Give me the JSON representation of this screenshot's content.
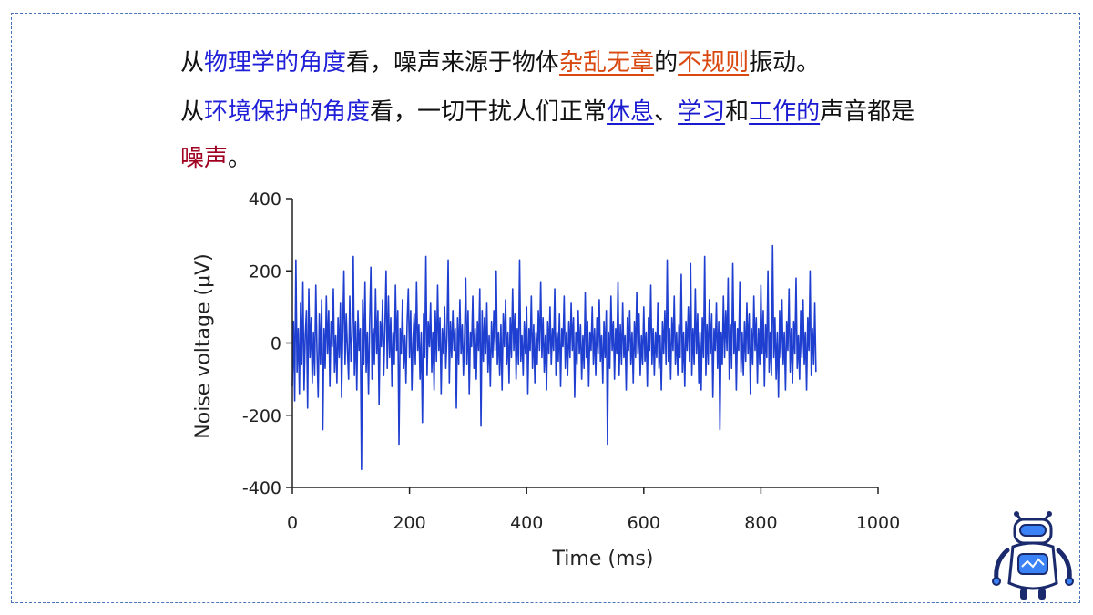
{
  "slide": {
    "line1": {
      "p1": "从",
      "p2": "物理学的角度",
      "p3": "看，噪声来源于物体",
      "p4": "杂乱无章",
      "p5": "的",
      "p6": "不规则",
      "p7": "振动。"
    },
    "line2": {
      "p1": "从",
      "p2": "环境保护的角度",
      "p3": "看，一切干扰人们正常",
      "p4": "休息",
      "p5": "、",
      "p6": "学习",
      "p7": "和",
      "p8": "工作的",
      "p9": "声音都是",
      "p10": "噪声",
      "p11": "。"
    }
  },
  "colors": {
    "frame": "#4a74b8",
    "blue_text": "#2020d8",
    "orange_link": "#d9480f",
    "dark_red": "#a00020",
    "signal": "#1f3fd0"
  },
  "robot": {
    "icon": "robot-icon"
  },
  "chart_data": {
    "type": "line",
    "xlabel": "Time (ms)",
    "ylabel": "Noise voltage (μV)",
    "xlim": [
      0,
      1000
    ],
    "ylim": [
      -400,
      400
    ],
    "xticks": [
      0,
      200,
      400,
      600,
      800,
      1000
    ],
    "xtick_labels": [
      "0",
      "200",
      "400",
      "600",
      "800",
      "1000"
    ],
    "yticks": [
      400,
      200,
      0,
      -200,
      -400
    ],
    "ytick_labels": [
      "400",
      "200",
      "0",
      "-200",
      "-400"
    ],
    "grid": false,
    "sample_interval_ms": 2,
    "series": [
      {
        "color": "#1f3fd0",
        "y": [
          -120,
          60,
          -160,
          230,
          -80,
          40,
          -140,
          110,
          -60,
          170,
          -130,
          20,
          90,
          -180,
          150,
          -40,
          70,
          -110,
          30,
          -90,
          160,
          -20,
          -150,
          80,
          -60,
          120,
          -240,
          40,
          -70,
          130,
          -30,
          90,
          -120,
          60,
          -10,
          150,
          -80,
          20,
          -110,
          70,
          -40,
          110,
          -150,
          30,
          200,
          -60,
          80,
          -20,
          -100,
          130,
          -50,
          20,
          240,
          -90,
          60,
          -130,
          90,
          -20,
          40,
          -350,
          120,
          -60,
          170,
          -80,
          30,
          -140,
          60,
          210,
          -100,
          40,
          -60,
          150,
          -30,
          90,
          -170,
          60,
          -10,
          120,
          -90,
          40,
          200,
          -70,
          130,
          -40,
          70,
          -120,
          30,
          -60,
          160,
          -20,
          90,
          -280,
          40,
          -30,
          120,
          -70,
          20,
          -110,
          60,
          150,
          -40,
          90,
          -130,
          10,
          80,
          -60,
          170,
          -20,
          50,
          -100,
          30,
          -220,
          80,
          -40,
          240,
          -90,
          60,
          -10,
          110,
          -80,
          30,
          -130,
          90,
          -50,
          160,
          -20,
          70,
          -140,
          40,
          -30,
          100,
          -70,
          20,
          230,
          -110,
          60,
          -40,
          90,
          -20,
          40,
          -180,
          70,
          -60,
          120,
          -30,
          50,
          -90,
          20,
          180,
          -60,
          90,
          -140,
          30,
          -10,
          130,
          -70,
          40,
          -100,
          60,
          -20,
          150,
          -230,
          90,
          -50,
          70,
          -30,
          110,
          -80,
          20,
          -120,
          60,
          -40,
          90,
          -20,
          200,
          -60,
          30,
          -90,
          50,
          -130,
          80,
          -10,
          120,
          -60,
          30,
          -110,
          70,
          -40,
          150,
          -20,
          80,
          -100,
          40,
          -60,
          230,
          -50,
          20,
          -90,
          60,
          -30,
          100,
          -140,
          40,
          -20,
          130,
          -70,
          50,
          -110,
          30,
          -60,
          90,
          -20,
          170,
          -40,
          70,
          -80,
          20,
          -130,
          60,
          -30,
          100,
          -60,
          40,
          -20,
          150,
          -90,
          30,
          -50,
          80,
          -120,
          40,
          -10,
          130,
          -70,
          30,
          -90,
          60,
          -40,
          110,
          -20,
          70,
          -150,
          30,
          -60,
          90,
          -30,
          50,
          -100,
          20,
          -70,
          140,
          -40,
          60,
          -120,
          30,
          -20,
          100,
          -60,
          40,
          -90,
          70,
          -30,
          120,
          -50,
          20,
          -110,
          60,
          -40,
          90,
          -280,
          30,
          -70,
          130,
          -20,
          60,
          -100,
          40,
          -30,
          170,
          -90,
          50,
          -60,
          110,
          -40,
          20,
          -130,
          70,
          -20,
          90,
          -60,
          30,
          -110,
          60,
          -40,
          140,
          -30,
          80,
          -90,
          20,
          -60,
          100,
          -50,
          30,
          -120,
          70,
          -20,
          160,
          -60,
          40,
          -90,
          30,
          -40,
          110,
          -70,
          20,
          -130,
          60,
          -30,
          90,
          -60,
          230,
          -50,
          40,
          -100,
          70,
          -20,
          130,
          -60,
          30,
          -90,
          50,
          -40,
          190,
          -80,
          30,
          -120,
          60,
          -20,
          100,
          -50,
          220,
          -90,
          40,
          -60,
          150,
          -30,
          80,
          -110,
          30,
          -130,
          70,
          -40,
          240,
          -90,
          50,
          -60,
          120,
          -30,
          80,
          -150,
          40,
          -20,
          110,
          -70,
          60,
          -240,
          30,
          -60,
          130,
          -40,
          90,
          -20,
          180,
          -100,
          50,
          -70,
          220,
          -30,
          60,
          -130,
          40,
          -20,
          170,
          -80,
          30,
          -90,
          60,
          -50,
          110,
          -30,
          80,
          -140,
          40,
          -60,
          130,
          -20,
          70,
          -110,
          40,
          -60,
          160,
          -30,
          90,
          -120,
          50,
          -40,
          200,
          -80,
          30,
          -90,
          270,
          -40,
          70,
          -100,
          30,
          -150,
          90,
          -40,
          120,
          -60,
          30,
          -130,
          60,
          -20,
          150,
          -80,
          40,
          -110,
          60,
          -30,
          180,
          -70,
          20,
          -100,
          90,
          -40,
          120,
          -60,
          30,
          -130,
          70,
          -20,
          200,
          -90,
          40,
          -60,
          110,
          -80
        ]
      }
    ]
  }
}
